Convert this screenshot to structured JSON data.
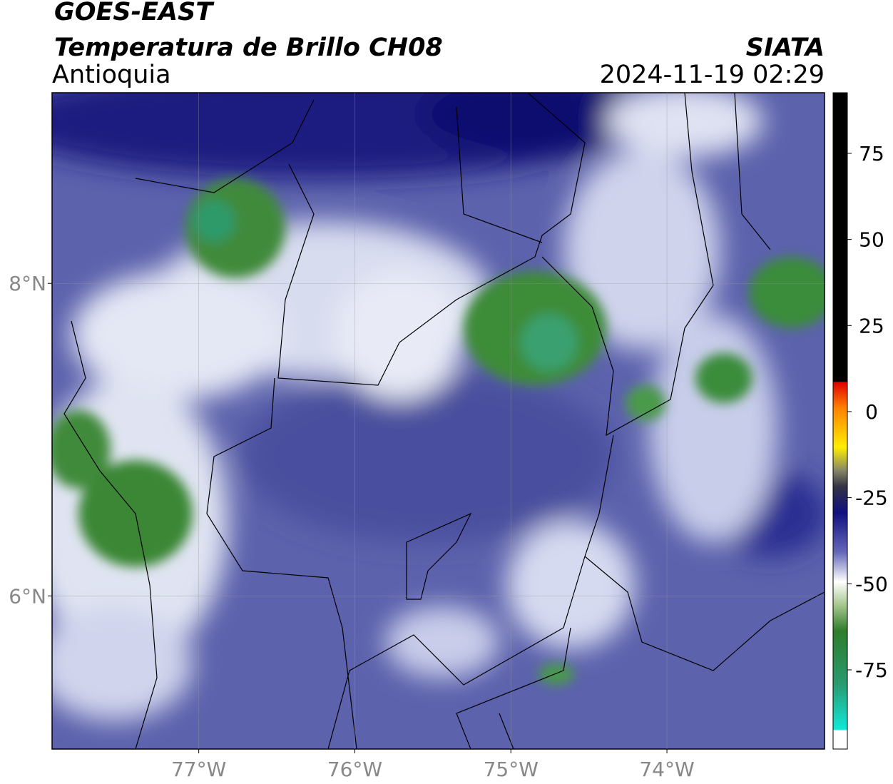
{
  "header": {
    "title": "GOES-EAST",
    "subtitle": "Temperatura de Brillo CH08",
    "region": "Antioquia",
    "source": "SIATA",
    "timestamp": "2024-11-19 02:29"
  },
  "map": {
    "xlim": [
      -77.94,
      -72.99
    ],
    "ylim": [
      5.02,
      9.22
    ],
    "xticks": [
      {
        "value": -77,
        "label": "77°W"
      },
      {
        "value": -76,
        "label": "76°W"
      },
      {
        "value": -75,
        "label": "75°W"
      },
      {
        "value": -74,
        "label": "74°W"
      }
    ],
    "yticks": [
      {
        "value": 8,
        "label": "8°N"
      },
      {
        "value": 6,
        "label": "6°N"
      }
    ],
    "grid": true
  },
  "colorbar": {
    "lim": [
      -98,
      92.6
    ],
    "ticks": [
      75,
      50,
      25,
      0,
      -25,
      -50,
      -75
    ]
  }
}
